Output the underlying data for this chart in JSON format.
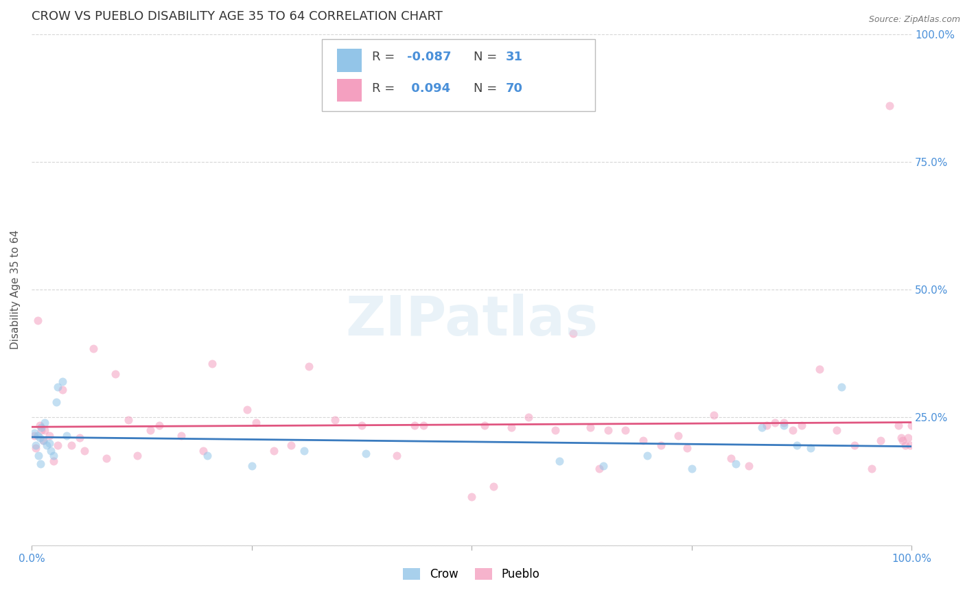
{
  "title": "CROW VS PUEBLO DISABILITY AGE 35 TO 64 CORRELATION CHART",
  "source": "Source: ZipAtlas.com",
  "ylabel": "Disability Age 35 to 64",
  "xlim": [
    0,
    1
  ],
  "ylim": [
    0,
    1
  ],
  "crow_color": "#93c5e8",
  "pueblo_color": "#f4a0c0",
  "crow_line_color": "#3a7bbf",
  "pueblo_line_color": "#e05580",
  "legend_label_crow": "Crow",
  "legend_label_pueblo": "Pueblo",
  "crow_R": "-0.087",
  "crow_N": 31,
  "pueblo_R": "0.094",
  "pueblo_N": 70,
  "background_color": "#ffffff",
  "grid_color": "#cccccc",
  "title_color": "#333333",
  "axis_label_color": "#555555",
  "tick_color": "#4a90d9",
  "crow_points_x": [
    0.003,
    0.005,
    0.007,
    0.008,
    0.009,
    0.01,
    0.011,
    0.013,
    0.015,
    0.017,
    0.02,
    0.022,
    0.025,
    0.028,
    0.03,
    0.035,
    0.04,
    0.2,
    0.25,
    0.31,
    0.38,
    0.6,
    0.65,
    0.7,
    0.75,
    0.8,
    0.83,
    0.855,
    0.87,
    0.885,
    0.92
  ],
  "crow_points_y": [
    0.22,
    0.195,
    0.215,
    0.175,
    0.21,
    0.16,
    0.23,
    0.205,
    0.24,
    0.195,
    0.2,
    0.185,
    0.175,
    0.28,
    0.31,
    0.32,
    0.215,
    0.175,
    0.155,
    0.185,
    0.18,
    0.165,
    0.155,
    0.175,
    0.15,
    0.16,
    0.23,
    0.235,
    0.195,
    0.19,
    0.31
  ],
  "pueblo_points_x": [
    0.003,
    0.005,
    0.007,
    0.009,
    0.011,
    0.013,
    0.015,
    0.02,
    0.025,
    0.03,
    0.035,
    0.045,
    0.055,
    0.06,
    0.07,
    0.085,
    0.095,
    0.11,
    0.12,
    0.135,
    0.145,
    0.17,
    0.195,
    0.205,
    0.245,
    0.255,
    0.275,
    0.295,
    0.315,
    0.345,
    0.375,
    0.415,
    0.435,
    0.445,
    0.5,
    0.515,
    0.525,
    0.545,
    0.565,
    0.595,
    0.615,
    0.635,
    0.645,
    0.655,
    0.675,
    0.695,
    0.715,
    0.735,
    0.745,
    0.775,
    0.795,
    0.815,
    0.835,
    0.845,
    0.855,
    0.865,
    0.875,
    0.895,
    0.915,
    0.935,
    0.955,
    0.965,
    0.975,
    0.985,
    0.988,
    0.99,
    0.993,
    0.996,
    0.998,
    1.0
  ],
  "pueblo_points_y": [
    0.215,
    0.19,
    0.44,
    0.235,
    0.225,
    0.205,
    0.225,
    0.215,
    0.165,
    0.195,
    0.305,
    0.195,
    0.21,
    0.185,
    0.385,
    0.17,
    0.335,
    0.245,
    0.175,
    0.225,
    0.235,
    0.215,
    0.185,
    0.355,
    0.265,
    0.24,
    0.185,
    0.195,
    0.35,
    0.245,
    0.235,
    0.175,
    0.235,
    0.235,
    0.095,
    0.235,
    0.115,
    0.23,
    0.25,
    0.225,
    0.415,
    0.23,
    0.15,
    0.225,
    0.225,
    0.205,
    0.195,
    0.215,
    0.19,
    0.255,
    0.17,
    0.155,
    0.235,
    0.24,
    0.24,
    0.225,
    0.235,
    0.345,
    0.225,
    0.195,
    0.15,
    0.205,
    0.86,
    0.235,
    0.21,
    0.205,
    0.195,
    0.21,
    0.195,
    0.235
  ],
  "title_fontsize": 13,
  "axis_label_fontsize": 11,
  "tick_fontsize": 11,
  "legend_fontsize": 13,
  "marker_size": 75,
  "marker_alpha": 0.55,
  "watermark_text": "ZIPatlas",
  "watermark_color": "#d0e4f0",
  "watermark_fontsize": 58,
  "watermark_alpha": 0.45
}
